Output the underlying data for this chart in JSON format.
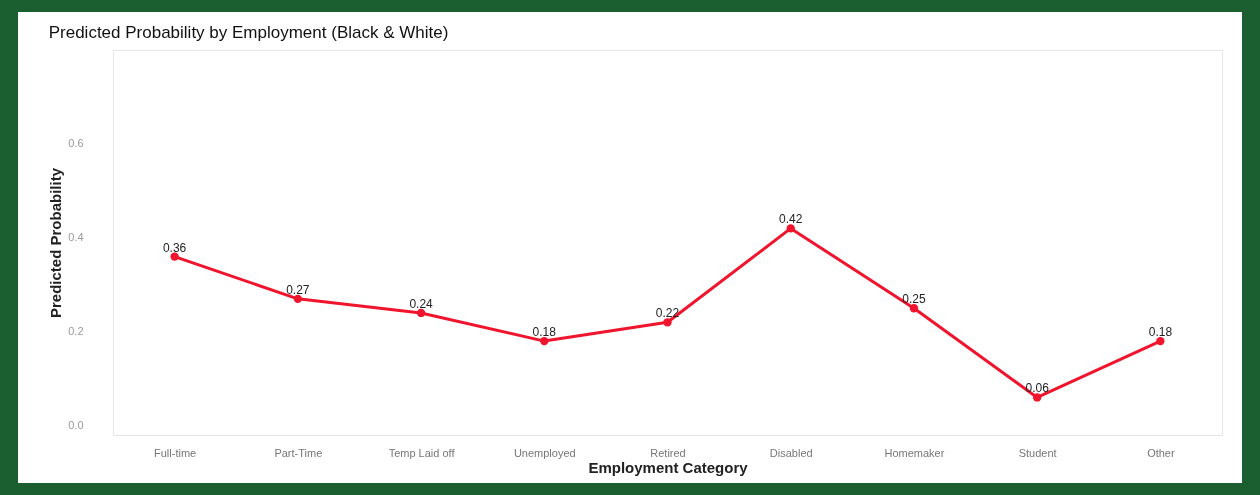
{
  "chart_data": {
    "type": "line",
    "title": "Predicted Probability by Employment (Black & White)",
    "xlabel": "Employment Category",
    "ylabel": "Predicted Probability",
    "categories": [
      "Full-time",
      "Part-Time",
      "Temp Laid off",
      "Unemployed",
      "Retired",
      "Disabled",
      "Homemaker",
      "Student",
      "Other"
    ],
    "series": [
      {
        "color": "#f0142d",
        "values": [
          0.36,
          0.27,
          0.24,
          0.18,
          0.22,
          0.42,
          0.25,
          0.06,
          0.18
        ]
      }
    ],
    "ylim": [
      -0.02,
      0.8
    ],
    "yticks": [
      {
        "value": 0.0,
        "label": "0.0"
      },
      {
        "value": 0.2,
        "label": "0.2"
      },
      {
        "value": 0.4,
        "label": "0.4"
      },
      {
        "value": 0.6,
        "label": "0.6"
      }
    ],
    "marker": "circle",
    "line_style": "solid",
    "data_labels": true,
    "grid": false
  }
}
